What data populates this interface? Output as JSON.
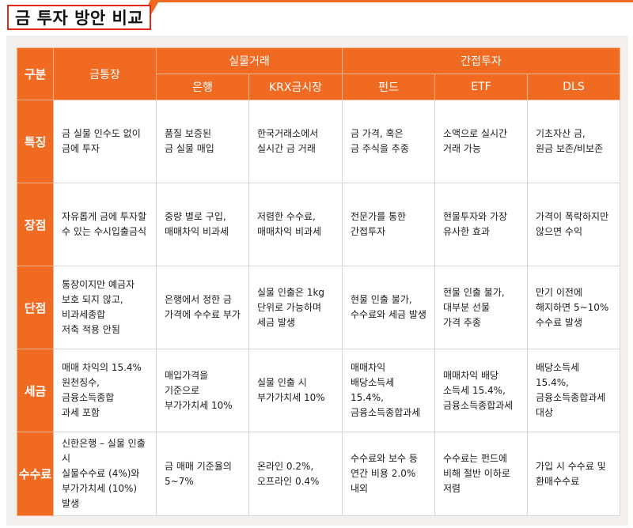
{
  "title": "금 투자 방안 비교",
  "colors": {
    "accent": "#f06a22",
    "title_border": "#e0271c"
  },
  "header": {
    "group_label": "구분",
    "gold_account": "금통장",
    "physical": "실물거래",
    "indirect": "간접투자",
    "sub": [
      "은행",
      "KRX금시장",
      "펀드",
      "ETF",
      "DLS"
    ]
  },
  "rows": [
    {
      "label": "특징",
      "cells": [
        "금 실물 인수도 없이\n금에 투자",
        "품질 보증된\n금 실물 매입",
        "한국거래소에서\n실시간 금 거래",
        "금 가격, 혹은\n금 주식을 추종",
        "소액으로 실시간\n거래 가능",
        "기초자산 금,\n원금 보존/비보존"
      ]
    },
    {
      "label": "장점",
      "cells": [
        "자유롭게 금에 투자할\n수 있는 수시입출금식",
        "중량 별로 구입,\n매매차익 비과세",
        "저렴한 수수료,\n매매차익 비과세",
        "전문가를 통한\n간접투자",
        "현물투자와 가장\n유사한 효과",
        "가격이 폭락하지만\n않으면 수익"
      ]
    },
    {
      "label": "단점",
      "cells": [
        "통장이지만 예금자\n보호 되지 않고,\n비과세종합\n저축 적용 안됨",
        "은행에서 정한 금\n가격에 수수료 부가",
        "실물 인출은 1kg\n단위로 가능하며\n세금 발생",
        "현물 인출 불가,\n수수료와 세금 발생",
        "현물 인출 불가,\n대부분 선물\n가격 추종",
        "만기 이전에\n해지하면 5~10%\n수수료 발생"
      ]
    },
    {
      "label": "세금",
      "cells": [
        "매매 차익의 15.4%\n원천징수,\n금융소득종합\n과세 포함",
        "매입가격을\n기준으로\n부가가치세 10%",
        "실물 인출 시\n부가가치세 10%",
        "매매차익\n배당소득세 15.4%,\n금융소득종합과세",
        "매매차익 배당\n소득세 15.4%,\n금융소득종합과세",
        "배당소득세 15.4%,\n금융소득종합과세\n대상"
      ]
    },
    {
      "label": "수수료",
      "cells": [
        "신한은행 – 실물 인출 시\n실물수수료 (4%)와\n부가가치세 (10%) 발생",
        "금 매매 기준율의\n5~7%",
        "온라인 0.2%,\n오프라인 0.4%",
        "수수료와 보수 등\n연간 비용 2.0% 내외",
        "수수료는 펀드에\n비해 절반 이하로\n저렴",
        "가입 시 수수료 및\n환매수수료"
      ]
    }
  ]
}
